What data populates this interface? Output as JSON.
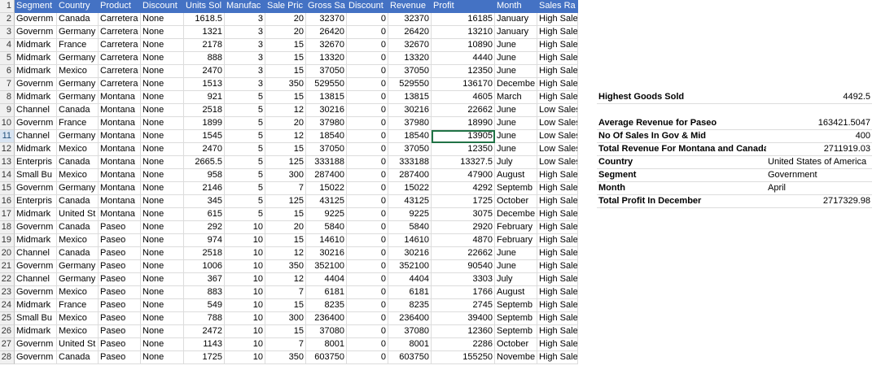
{
  "headers": [
    "Segment",
    "Country",
    "Product",
    "Discount",
    "Units Sol",
    "Manufac",
    "Sale Pric",
    "Gross Sa",
    "Discount",
    "Revenue",
    "Profit",
    "Month",
    "Sales Ra"
  ],
  "rows": [
    [
      "1",
      [
        "Segment",
        "Country",
        "Product",
        "Discount",
        "Units Sol",
        "Manufac",
        "Sale Pric",
        "Gross Sa",
        "Discount",
        "Revenue",
        "Profit",
        "Month",
        "Sales Ra"
      ]
    ],
    [
      "2",
      [
        "Governm",
        "Canada",
        "Carretera",
        "None",
        "1618.5",
        "3",
        "20",
        "32370",
        "0",
        "32370",
        "16185",
        "January",
        "High Sales"
      ]
    ],
    [
      "3",
      [
        "Governm",
        "Germany",
        "Carretera",
        "None",
        "1321",
        "3",
        "20",
        "26420",
        "0",
        "26420",
        "13210",
        "January",
        "High Sales"
      ]
    ],
    [
      "4",
      [
        "Midmark",
        "France",
        "Carretera",
        "None",
        "2178",
        "3",
        "15",
        "32670",
        "0",
        "32670",
        "10890",
        "June",
        "High Sales"
      ]
    ],
    [
      "5",
      [
        "Midmark",
        "Germany",
        "Carretera",
        "None",
        "888",
        "3",
        "15",
        "13320",
        "0",
        "13320",
        "4440",
        "June",
        "High Sales"
      ]
    ],
    [
      "6",
      [
        "Midmark",
        "Mexico",
        "Carretera",
        "None",
        "2470",
        "3",
        "15",
        "37050",
        "0",
        "37050",
        "12350",
        "June",
        "High Sales"
      ]
    ],
    [
      "7",
      [
        "Governm",
        "Germany",
        "Carretera",
        "None",
        "1513",
        "3",
        "350",
        "529550",
        "0",
        "529550",
        "136170",
        "Decembe",
        "High Sales"
      ]
    ],
    [
      "8",
      [
        "Midmark",
        "Germany",
        "Montana",
        "None",
        "921",
        "5",
        "15",
        "13815",
        "0",
        "13815",
        "4605",
        "March",
        "High Sales"
      ]
    ],
    [
      "9",
      [
        "Channel",
        "Canada",
        "Montana",
        "None",
        "2518",
        "5",
        "12",
        "30216",
        "0",
        "30216",
        "22662",
        "June",
        "Low Sales"
      ]
    ],
    [
      "10",
      [
        "Governm",
        "France",
        "Montana",
        "None",
        "1899",
        "5",
        "20",
        "37980",
        "0",
        "37980",
        "18990",
        "June",
        "Low Sales"
      ]
    ],
    [
      "11",
      [
        "Channel",
        "Germany",
        "Montana",
        "None",
        "1545",
        "5",
        "12",
        "18540",
        "0",
        "18540",
        "13905",
        "June",
        "Low Sales"
      ]
    ],
    [
      "12",
      [
        "Midmark",
        "Mexico",
        "Montana",
        "None",
        "2470",
        "5",
        "15",
        "37050",
        "0",
        "37050",
        "12350",
        "June",
        "Low Sales"
      ]
    ],
    [
      "13",
      [
        "Enterpris",
        "Canada",
        "Montana",
        "None",
        "2665.5",
        "5",
        "125",
        "333188",
        "0",
        "333188",
        "13327.5",
        "July",
        "Low Sales"
      ]
    ],
    [
      "14",
      [
        "Small Bu",
        "Mexico",
        "Montana",
        "None",
        "958",
        "5",
        "300",
        "287400",
        "0",
        "287400",
        "47900",
        "August",
        "High Sales"
      ]
    ],
    [
      "15",
      [
        "Governm",
        "Germany",
        "Montana",
        "None",
        "2146",
        "5",
        "7",
        "15022",
        "0",
        "15022",
        "4292",
        "Septemb",
        "High Sales"
      ]
    ],
    [
      "16",
      [
        "Enterpris",
        "Canada",
        "Montana",
        "None",
        "345",
        "5",
        "125",
        "43125",
        "0",
        "43125",
        "1725",
        "October",
        "High Sales"
      ]
    ],
    [
      "17",
      [
        "Midmark",
        "United St",
        "Montana",
        "None",
        "615",
        "5",
        "15",
        "9225",
        "0",
        "9225",
        "3075",
        "Decembe",
        "High Sales"
      ]
    ],
    [
      "18",
      [
        "Governm",
        "Canada",
        "Paseo",
        "None",
        "292",
        "10",
        "20",
        "5840",
        "0",
        "5840",
        "2920",
        "February",
        "High Sales"
      ]
    ],
    [
      "19",
      [
        "Midmark",
        "Mexico",
        "Paseo",
        "None",
        "974",
        "10",
        "15",
        "14610",
        "0",
        "14610",
        "4870",
        "February",
        "High Sales"
      ]
    ],
    [
      "20",
      [
        "Channel",
        "Canada",
        "Paseo",
        "None",
        "2518",
        "10",
        "12",
        "30216",
        "0",
        "30216",
        "22662",
        "June",
        "High Sales"
      ]
    ],
    [
      "21",
      [
        "Governm",
        "Germany",
        "Paseo",
        "None",
        "1006",
        "10",
        "350",
        "352100",
        "0",
        "352100",
        "90540",
        "June",
        "High Sales"
      ]
    ],
    [
      "22",
      [
        "Channel",
        "Germany",
        "Paseo",
        "None",
        "367",
        "10",
        "12",
        "4404",
        "0",
        "4404",
        "3303",
        "July",
        "High Sales"
      ]
    ],
    [
      "23",
      [
        "Governm",
        "Mexico",
        "Paseo",
        "None",
        "883",
        "10",
        "7",
        "6181",
        "0",
        "6181",
        "1766",
        "August",
        "High Sales"
      ]
    ],
    [
      "24",
      [
        "Midmark",
        "France",
        "Paseo",
        "None",
        "549",
        "10",
        "15",
        "8235",
        "0",
        "8235",
        "2745",
        "Septemb",
        "High Sales"
      ]
    ],
    [
      "25",
      [
        "Small Bu",
        "Mexico",
        "Paseo",
        "None",
        "788",
        "10",
        "300",
        "236400",
        "0",
        "236400",
        "39400",
        "Septemb",
        "High Sales"
      ]
    ],
    [
      "26",
      [
        "Midmark",
        "Mexico",
        "Paseo",
        "None",
        "2472",
        "10",
        "15",
        "37080",
        "0",
        "37080",
        "12360",
        "Septemb",
        "High Sales"
      ]
    ],
    [
      "27",
      [
        "Governm",
        "United St",
        "Paseo",
        "None",
        "1143",
        "10",
        "7",
        "8001",
        "0",
        "8001",
        "2286",
        "October",
        "High Sales"
      ]
    ],
    [
      "28",
      [
        "Governm",
        "Canada",
        "Paseo",
        "None",
        "1725",
        "10",
        "350",
        "603750",
        "0",
        "603750",
        "155250",
        "Novembe",
        "High Sales"
      ]
    ]
  ],
  "summary": [
    {
      "label": "Highest Goods Sold",
      "value": "4492.5"
    },
    {
      "label": "Average Revenue for Paseo",
      "value": "163421.5047"
    },
    {
      "label": "No Of Sales In Gov & Mid",
      "value": "400"
    },
    {
      "label": "Total Revenue For Montana and Canada",
      "value": "2711919.03"
    },
    {
      "label": "Country",
      "value": "United States of America"
    },
    {
      "label": "Segment",
      "value": "Government"
    },
    {
      "label": "Month",
      "value": "April"
    },
    {
      "label": "Total Profit In December",
      "value": "2717329.98"
    }
  ],
  "selected_cell": "K11",
  "colors": {
    "header_bg": "#4472c4",
    "header_text": "#ffffff",
    "grid": "#dcdcdc",
    "selection": "#217346"
  }
}
